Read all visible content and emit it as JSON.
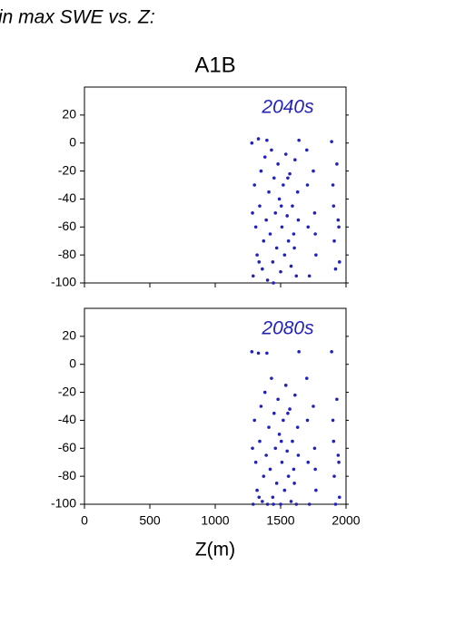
{
  "header": {
    "title": "in max SWE vs. Z:",
    "subtitle": "A1B"
  },
  "chart_data": [
    {
      "type": "scatter",
      "annotation": "2040s",
      "color": "#2222bb",
      "xlim": [
        0,
        2000
      ],
      "ylim": [
        -100,
        40
      ],
      "yticks": [
        -100,
        -80,
        -60,
        -40,
        -20,
        0,
        20
      ],
      "x": [
        1280,
        1290,
        1300,
        1310,
        1320,
        1330,
        1340,
        1350,
        1360,
        1370,
        1380,
        1390,
        1400,
        1410,
        1420,
        1430,
        1440,
        1450,
        1460,
        1470,
        1480,
        1490,
        1500,
        1510,
        1520,
        1530,
        1540,
        1550,
        1560,
        1570,
        1580,
        1590,
        1600,
        1610,
        1620,
        1630,
        1640,
        1700,
        1710,
        1720,
        1750,
        1760,
        1770,
        1890,
        1900,
        1910,
        1920,
        1930,
        1940,
        1950,
        1285,
        1335,
        1395,
        1445,
        1505,
        1555,
        1605,
        1635,
        1705,
        1765,
        1905,
        1945
      ],
      "y": [
        0,
        -95,
        -30,
        -60,
        -80,
        3,
        -45,
        -20,
        -90,
        -70,
        -10,
        -55,
        -98,
        -35,
        -65,
        -5,
        -85,
        -25,
        -50,
        -75,
        -15,
        -40,
        -92,
        -60,
        -30,
        -80,
        -8,
        -52,
        -70,
        -22,
        -88,
        -45,
        -65,
        -12,
        -95,
        -35,
        2,
        -5,
        -60,
        -95,
        -20,
        -50,
        -80,
        1,
        -30,
        -70,
        -90,
        -15,
        -55,
        -85,
        -50,
        -85,
        2,
        -100,
        -45,
        -25,
        -75,
        -55,
        -30,
        -65,
        -45,
        -60
      ]
    },
    {
      "type": "scatter",
      "annotation": "2080s",
      "color": "#2222bb",
      "xlabel": "Z(m)",
      "xlim": [
        0,
        2000
      ],
      "xticks": [
        0,
        500,
        1000,
        1500,
        2000
      ],
      "ylim": [
        -100,
        40
      ],
      "yticks": [
        -100,
        -80,
        -60,
        -40,
        -20,
        0,
        20
      ],
      "x": [
        1280,
        1290,
        1300,
        1310,
        1320,
        1330,
        1340,
        1350,
        1360,
        1370,
        1380,
        1390,
        1400,
        1410,
        1420,
        1430,
        1440,
        1450,
        1460,
        1470,
        1480,
        1490,
        1500,
        1510,
        1520,
        1530,
        1540,
        1550,
        1560,
        1570,
        1580,
        1590,
        1600,
        1610,
        1620,
        1630,
        1640,
        1700,
        1710,
        1720,
        1750,
        1760,
        1770,
        1890,
        1900,
        1910,
        1920,
        1930,
        1940,
        1950,
        1285,
        1335,
        1395,
        1445,
        1505,
        1555,
        1605,
        1635,
        1705,
        1765,
        1905,
        1945
      ],
      "y": [
        9,
        -100,
        -40,
        -70,
        -90,
        8,
        -55,
        -30,
        -98,
        -80,
        -20,
        -65,
        -100,
        -45,
        -75,
        -10,
        -95,
        -35,
        -60,
        -85,
        -25,
        -50,
        -100,
        -70,
        -40,
        -90,
        -15,
        -62,
        -80,
        -32,
        -98,
        -55,
        -75,
        -22,
        -100,
        -45,
        9,
        -10,
        -70,
        -100,
        -30,
        -60,
        -90,
        9,
        -40,
        -80,
        -100,
        -25,
        -65,
        -95,
        -60,
        -95,
        8,
        -100,
        -55,
        -35,
        -85,
        -65,
        -40,
        -75,
        -55,
        -70
      ]
    }
  ]
}
